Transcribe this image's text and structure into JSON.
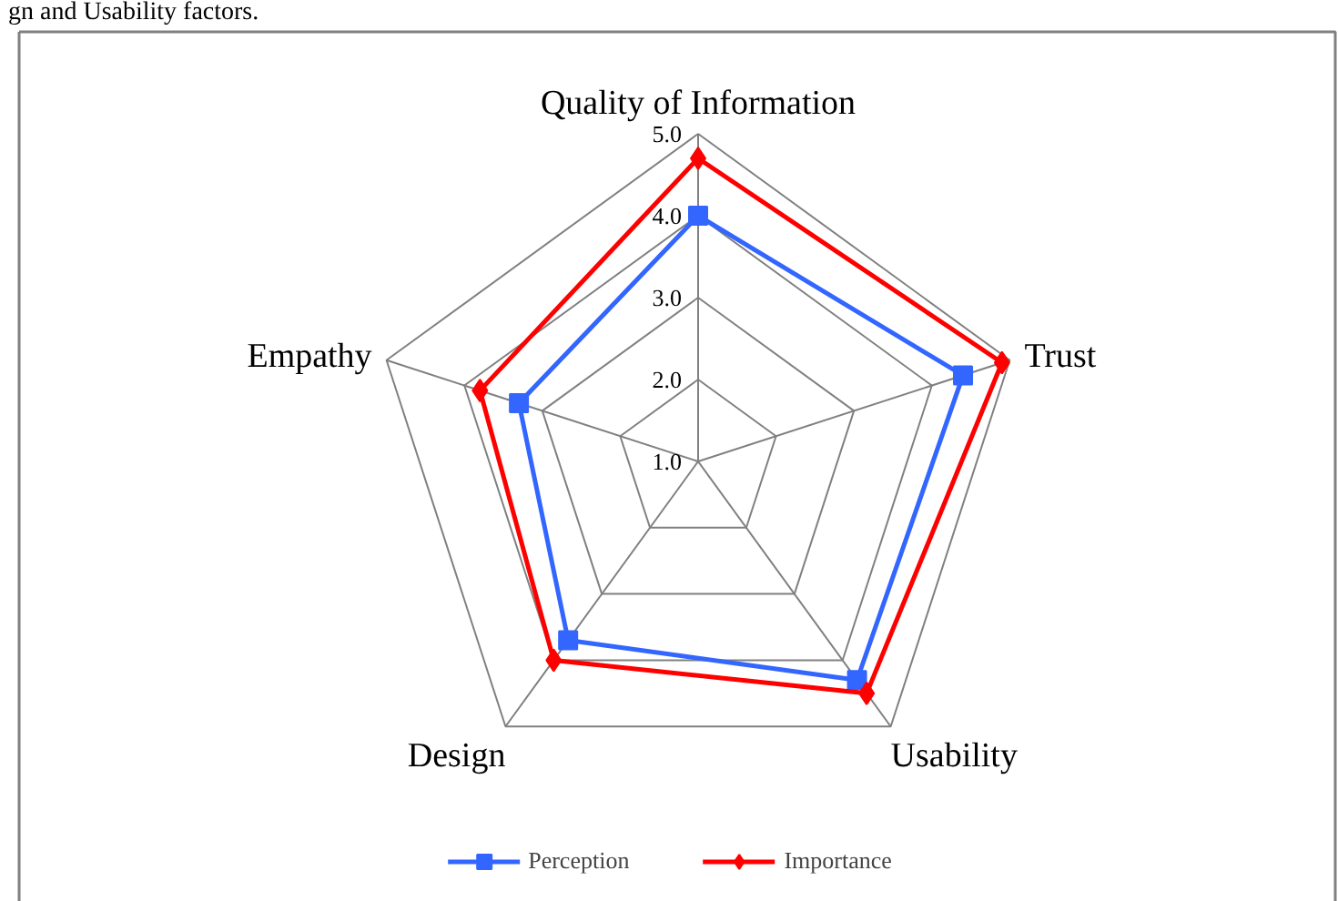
{
  "chart_data": {
    "type": "radar",
    "annotations": [
      "gn and Usability factors."
    ],
    "categories": [
      "Quality of Information",
      "Trust",
      "Usability",
      "Design",
      "Empathy"
    ],
    "ylim": [
      1,
      5
    ],
    "yticks": [
      {
        "value": 1,
        "label": "1.0"
      },
      {
        "value": 2,
        "label": "2.0"
      },
      {
        "value": 3,
        "label": "3.0"
      },
      {
        "value": 4,
        "label": "4.0"
      },
      {
        "value": 5,
        "label": "5.0"
      }
    ],
    "grid": true,
    "legend": "bottom",
    "series": [
      {
        "name": "Perception",
        "color": "#3366ff",
        "marker": "square",
        "values": [
          4.0,
          4.4,
          4.3,
          3.7,
          3.3
        ]
      },
      {
        "name": "Importance",
        "color": "#ff0000",
        "marker": "diamond",
        "values": [
          4.7,
          4.9,
          4.5,
          4.0,
          3.8
        ]
      }
    ]
  }
}
